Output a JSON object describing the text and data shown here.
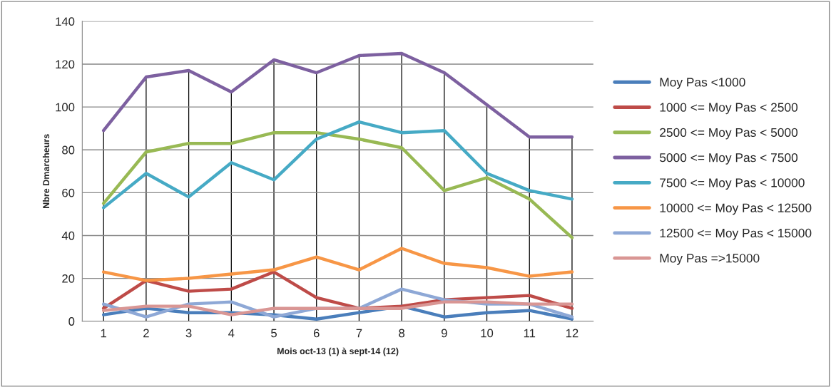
{
  "chart_data": {
    "type": "line",
    "xlabel": "Mois oct-13 (1) à sept-14 (12)",
    "ylabel": "Nbre Dmarcheurs",
    "categories": [
      "1",
      "2",
      "3",
      "4",
      "5",
      "6",
      "7",
      "8",
      "9",
      "10",
      "11",
      "12"
    ],
    "ylim": [
      0,
      140
    ],
    "yticks": [
      0,
      20,
      40,
      60,
      80,
      100,
      120,
      140
    ],
    "grid": true,
    "legend": "right",
    "marker": "none",
    "line_style": "solid",
    "series": [
      {
        "name": "Moy Pas <1000",
        "color": "#4a7ebb",
        "values": [
          3,
          6,
          4,
          4,
          3,
          1,
          4,
          7,
          2,
          4,
          5,
          1
        ]
      },
      {
        "name": "1000 <= Moy Pas < 2500",
        "color": "#be4b48",
        "values": [
          6,
          19,
          14,
          15,
          23,
          11,
          6,
          7,
          10,
          11,
          12,
          6
        ]
      },
      {
        "name": "2500 <= Moy Pas < 5000",
        "color": "#98b954",
        "values": [
          55,
          79,
          83,
          83,
          88,
          88,
          85,
          81,
          61,
          67,
          57,
          39
        ]
      },
      {
        "name": "5000 <= Moy Pas < 7500",
        "color": "#7d60a0",
        "values": [
          89,
          114,
          117,
          107,
          122,
          116,
          124,
          125,
          116,
          101,
          86,
          86
        ]
      },
      {
        "name": "7500 <= Moy Pas < 10000",
        "color": "#46aac5",
        "values": [
          53,
          69,
          58,
          74,
          66,
          85,
          93,
          88,
          89,
          69,
          61,
          57
        ]
      },
      {
        "name": "10000 <= Moy Pas < 12500",
        "color": "#f79646",
        "values": [
          23,
          19,
          20,
          22,
          24,
          30,
          24,
          34,
          27,
          25,
          21,
          23
        ]
      },
      {
        "name": "12500 <= Moy Pas < 15000",
        "color": "#8ea8d6",
        "values": [
          8,
          2,
          8,
          9,
          2,
          6,
          6,
          15,
          10,
          8,
          8,
          2
        ]
      },
      {
        "name": "Moy Pas =>15000",
        "color": "#d99694",
        "values": [
          5,
          7,
          7,
          3,
          6,
          6,
          6,
          6,
          9,
          9,
          8,
          8
        ]
      }
    ]
  }
}
